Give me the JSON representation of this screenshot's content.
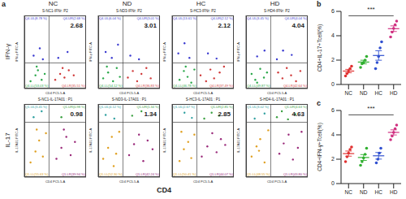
{
  "figure": {
    "panel_label": "a",
    "row_labels": [
      "IFN-γ",
      "IL-17"
    ],
    "column_labels": [
      "NC",
      "ND",
      "HC",
      "HD"
    ],
    "xlabel": "CD4"
  },
  "chart_data": [
    {
      "type": "scatter",
      "title": "S-NC1-IFNr: P2",
      "xlabel": "CD4 PC5.5-A",
      "ylabel": "IFN-γ FITC-A",
      "xlim": [
        0,
        100
      ],
      "ylim": [
        0,
        100
      ],
      "tick_labels": false,
      "gate": [
        40,
        35
      ],
      "annotations": [
        "2.68"
      ],
      "series": [
        {
          "name": "Q4-UL(8.78 %)",
          "color": "#3b3bd0",
          "x": [
            15,
            25,
            30
          ],
          "y": [
            45,
            55,
            40
          ]
        },
        {
          "name": "Q4-UR(2.68 %)",
          "color": "#3b3bd0",
          "x": [
            55,
            70
          ],
          "y": [
            42,
            50
          ]
        },
        {
          "name": "Q4-LL(53.03 %)",
          "color": "#2aa84a",
          "x": [
            10,
            18,
            22,
            28,
            33,
            20
          ],
          "y": [
            10,
            18,
            25,
            12,
            20,
            30
          ]
        },
        {
          "name": "Q4-LR(35.51 %)",
          "color": "#d03a3a",
          "x": [
            50,
            58,
            65,
            72,
            80,
            62
          ],
          "y": [
            12,
            20,
            15,
            25,
            18,
            28
          ]
        }
      ]
    },
    {
      "type": "scatter",
      "title": "S-ND3-IFNr: P2",
      "xlabel": "CD4 PC5.5-A",
      "ylabel": "IFN-γ FITC-A",
      "xlim": [
        0,
        100
      ],
      "ylim": [
        0,
        100
      ],
      "tick_labels": false,
      "gate": [
        40,
        35
      ],
      "annotations": [
        "3.01"
      ],
      "series": [
        {
          "name": "Q4-UL(6.04 %)",
          "color": "#3b3bd0",
          "x": [
            12,
            22,
            32
          ],
          "y": [
            50,
            42,
            60
          ]
        },
        {
          "name": "Q4-UR(3.01 %)",
          "color": "#3b3bd0",
          "x": [
            52,
            66
          ],
          "y": [
            45,
            40
          ]
        },
        {
          "name": "Q4-LL(54.12 %)",
          "color": "#2aa84a",
          "x": [
            8,
            16,
            24,
            30,
            35,
            14
          ],
          "y": [
            14,
            22,
            10,
            28,
            16,
            30
          ]
        },
        {
          "name": "Q4-LR(36.83 %)",
          "color": "#d03a3a",
          "x": [
            48,
            56,
            63,
            70,
            78,
            85
          ],
          "y": [
            15,
            24,
            10,
            20,
            28,
            14
          ]
        }
      ]
    },
    {
      "type": "scatter",
      "title": "S-HC3-IFNr: P2",
      "xlabel": "CD4 PC5.5-A",
      "ylabel": "IFN-γ FITC-A",
      "xlim": [
        0,
        100
      ],
      "ylim": [
        0,
        100
      ],
      "tick_labels": false,
      "gate": [
        40,
        35
      ],
      "annotations": [
        "2.12"
      ],
      "series": [
        {
          "name": "Q4-UL(13.61 %)",
          "color": "#3b3bd0",
          "x": [
            10,
            20,
            28
          ],
          "y": [
            48,
            62,
            42
          ]
        },
        {
          "name": "Q4-UR(2.12 %)",
          "color": "#3b3bd0",
          "x": [
            58,
            72
          ],
          "y": [
            48,
            41
          ]
        },
        {
          "name": "Q4-LL(46.78 %)",
          "color": "#2aa84a",
          "x": [
            12,
            19,
            25,
            31,
            36,
            22
          ],
          "y": [
            12,
            24,
            16,
            8,
            26,
            30
          ]
        },
        {
          "name": "Q4-LR(37.49 %)",
          "color": "#d03a3a",
          "x": [
            46,
            55,
            62,
            68,
            77,
            84
          ],
          "y": [
            18,
            10,
            26,
            14,
            22,
            30
          ]
        }
      ]
    },
    {
      "type": "scatter",
      "title": "S-HD4-IFNr: P2",
      "xlabel": "CD4 PC5.5-A",
      "ylabel": "IFN-γ FITC-A",
      "xlim": [
        0,
        100
      ],
      "ylim": [
        0,
        100
      ],
      "tick_labels": false,
      "gate": [
        40,
        35
      ],
      "annotations": [
        "4.04"
      ],
      "series": [
        {
          "name": "Q4-UL(3.45 %)",
          "color": "#3b3bd0",
          "x": [
            18,
            30
          ],
          "y": [
            44,
            52
          ]
        },
        {
          "name": "Q4-UR(4.04 %)",
          "color": "#3b3bd0",
          "x": [
            50,
            60,
            74
          ],
          "y": [
            40,
            52,
            46
          ]
        },
        {
          "name": "Q4-LL(49.87 %)",
          "color": "#2aa84a",
          "x": [
            9,
            15,
            23,
            29,
            34,
            18
          ],
          "y": [
            20,
            12,
            27,
            15,
            22,
            8
          ]
        },
        {
          "name": "Q4-LR(42.64 %)",
          "color": "#d03a3a",
          "x": [
            52,
            59,
            66,
            73,
            81,
            88
          ],
          "y": [
            22,
            14,
            28,
            18,
            10,
            24
          ]
        }
      ]
    },
    {
      "type": "scatter",
      "title": "S-NC1-IL-17A01 : P1",
      "xlabel": "CD4 PC5.5-A",
      "ylabel": "IL-17A01 FITC-A",
      "xlim": [
        0,
        100
      ],
      "ylim": [
        0,
        100
      ],
      "tick_labels": false,
      "gate": [
        40,
        75
      ],
      "annotations": [
        "0.98"
      ],
      "series": [
        {
          "name": "Q1-UL(3.45 %)",
          "color": "#2fa0a0",
          "x": [
            15,
            28
          ],
          "y": [
            82,
            90
          ]
        },
        {
          "name": "Q1-UR(0.98 %)",
          "color": "#3aa040",
          "x": [
            60
          ],
          "y": [
            82
          ]
        },
        {
          "name": "Q1-LL(55.63 %)",
          "color": "#e0a020",
          "x": [
            10,
            18,
            24,
            30,
            35,
            20
          ],
          "y": [
            20,
            35,
            50,
            28,
            60,
            65
          ]
        },
        {
          "name": "Q1-LR(39.94 %)",
          "color": "#9a2a7a",
          "x": [
            52,
            60,
            68,
            75,
            82,
            64
          ],
          "y": [
            25,
            40,
            55,
            30,
            48,
            65
          ]
        }
      ]
    },
    {
      "type": "scatter",
      "title": "S-ND3-IL-17A01 : P1",
      "xlabel": "CD4 PC5.5-A",
      "ylabel": "IL-17A01 FITC-A",
      "xlim": [
        0,
        100
      ],
      "ylim": [
        0,
        100
      ],
      "tick_labels": false,
      "gate": [
        40,
        75
      ],
      "annotations": [
        "1.34"
      ],
      "series": [
        {
          "name": "Q1-UL(4.12 %)",
          "color": "#2fa0a0",
          "x": [
            12,
            26
          ],
          "y": [
            85,
            80
          ]
        },
        {
          "name": "Q1-UR(1.34 %)",
          "color": "#3aa040",
          "x": [
            55,
            70
          ],
          "y": [
            84,
            90
          ]
        },
        {
          "name": "Q1-LL(52.30 %)",
          "color": "#e0a020",
          "x": [
            8,
            16,
            22,
            29,
            34,
            25
          ],
          "y": [
            25,
            40,
            55,
            32,
            62,
            15
          ]
        },
        {
          "name": "Q1-LR(42.24 %)",
          "color": "#9a2a7a",
          "x": [
            50,
            58,
            66,
            73,
            80,
            88
          ],
          "y": [
            30,
            45,
            58,
            22,
            50,
            38
          ]
        }
      ]
    },
    {
      "type": "scatter",
      "title": "S-HC3-IL-17A01 : P1",
      "xlabel": "CD4 PC5.5-A",
      "ylabel": "IL-17A01 FITC-A",
      "xlim": [
        0,
        100
      ],
      "ylim": [
        0,
        100
      ],
      "tick_labels": false,
      "gate": [
        40,
        75
      ],
      "annotations": [
        "2.85"
      ],
      "series": [
        {
          "name": "Q1-UL(2.67 %)",
          "color": "#2fa0a0",
          "x": [
            20,
            32
          ],
          "y": [
            88,
            81
          ]
        },
        {
          "name": "Q1-UR(2.85 %)",
          "color": "#3aa040",
          "x": [
            52,
            64,
            76
          ],
          "y": [
            80,
            88,
            84
          ]
        },
        {
          "name": "Q1-LL(50.41 %)",
          "color": "#e0a020",
          "x": [
            12,
            19,
            26,
            31,
            36,
            15
          ],
          "y": [
            22,
            38,
            48,
            26,
            58,
            62
          ]
        },
        {
          "name": "Q1-LR(44.07 %)",
          "color": "#9a2a7a",
          "x": [
            48,
            57,
            65,
            72,
            79,
            86
          ],
          "y": [
            28,
            42,
            60,
            34,
            52,
            44
          ]
        }
      ]
    },
    {
      "type": "scatter",
      "title": "S-HD4-IL-17A01 : P1",
      "xlabel": "CD4 PC5.5-A",
      "ylabel": "IL-17A01 FITC-A",
      "xlim": [
        0,
        100
      ],
      "ylim": [
        0,
        100
      ],
      "tick_labels": false,
      "gate": [
        40,
        75
      ],
      "annotations": [
        "4.63"
      ],
      "series": [
        {
          "name": "Q1-UL(3.02 %)",
          "color": "#2fa0a0",
          "x": [
            14,
            30
          ],
          "y": [
            80,
            87
          ]
        },
        {
          "name": "Q1-UR(4.63 %)",
          "color": "#3aa040",
          "x": [
            50,
            58,
            68,
            80
          ],
          "y": [
            82,
            90,
            79,
            86
          ]
        },
        {
          "name": "Q1-LL(48.55 %)",
          "color": "#e0a020",
          "x": [
            9,
            17,
            23,
            30,
            36,
            21
          ],
          "y": [
            28,
            42,
            52,
            20,
            64,
            36
          ]
        },
        {
          "name": "Q1-LR(43.80 %)",
          "color": "#9a2a7a",
          "x": [
            54,
            61,
            69,
            76,
            84,
            90
          ],
          "y": [
            32,
            46,
            58,
            24,
            40,
            62
          ]
        }
      ]
    },
    {
      "type": "dot_plot",
      "panel": "b",
      "ylabel": "CD4+IL-17+Tcell(%)",
      "categories": [
        "NC",
        "ND",
        "HC",
        "HD"
      ],
      "colors": [
        "#e03030",
        "#30b030",
        "#3050d0",
        "#d03080"
      ],
      "points": [
        [
          0.7,
          0.9,
          1.1,
          1.3,
          1.5
        ],
        [
          1.4,
          1.7,
          1.8,
          2.0,
          2.3
        ],
        [
          1.3,
          1.8,
          2.3,
          3.0,
          3.5
        ],
        [
          3.9,
          4.3,
          4.6,
          4.9,
          5.2
        ]
      ],
      "mean": [
        1.1,
        1.84,
        2.38,
        4.58
      ],
      "sem": [
        0.14,
        0.15,
        0.39,
        0.23
      ],
      "ylim": [
        0,
        6
      ],
      "yticks": [
        0,
        2,
        4,
        6
      ],
      "significance": {
        "text": "***",
        "between": [
          "NC",
          "HD"
        ]
      }
    },
    {
      "type": "dot_plot",
      "panel": "c",
      "ylabel": "CD4+IFN-γ+Tcell(%)",
      "categories": [
        "NC",
        "ND",
        "HC",
        "HD"
      ],
      "colors": [
        "#e03030",
        "#30b030",
        "#3050d0",
        "#d03080"
      ],
      "points": [
        [
          1.8,
          2.2,
          2.5,
          2.8,
          3.0
        ],
        [
          1.5,
          1.8,
          2.1,
          2.4,
          2.9
        ],
        [
          1.7,
          2.0,
          2.5,
          2.9
        ],
        [
          3.6,
          3.9,
          4.2,
          4.5,
          4.8
        ]
      ],
      "mean": [
        2.46,
        2.14,
        2.28,
        4.2
      ],
      "sem": [
        0.21,
        0.24,
        0.27,
        0.21
      ],
      "ylim": [
        0,
        6
      ],
      "yticks": [
        0,
        2,
        4,
        6
      ],
      "significance": {
        "text": "***",
        "between": [
          "NC",
          "HD"
        ]
      }
    }
  ]
}
